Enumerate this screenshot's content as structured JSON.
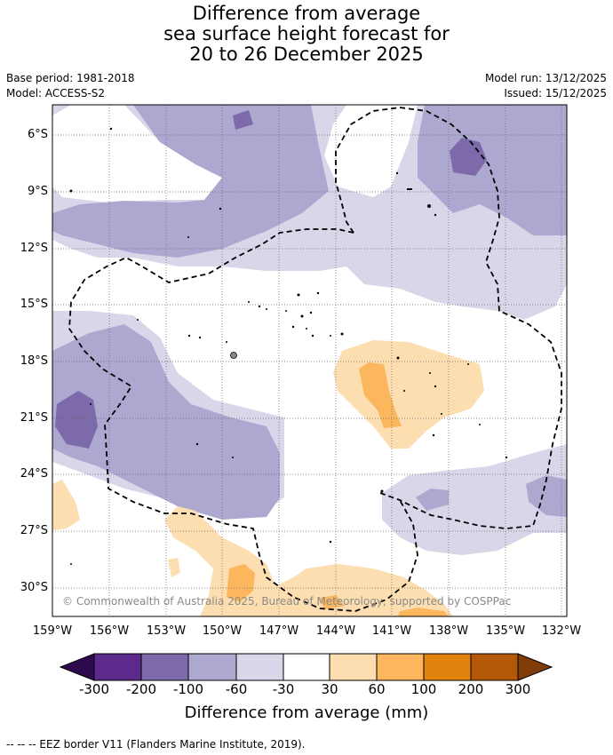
{
  "title": {
    "line1": "Difference from average",
    "line2": "sea surface height forecast for",
    "line3": "20 to 26 December 2025"
  },
  "meta": {
    "base_period": "Base period: 1981-2018",
    "model": "Model: ACCESS-S2",
    "model_run": "Model run: 13/12/2025",
    "issued": "Issued: 15/12/2025"
  },
  "axes": {
    "lat_labels": [
      "6°S",
      "9°S",
      "12°S",
      "15°S",
      "18°S",
      "21°S",
      "24°S",
      "27°S",
      "30°S"
    ],
    "lon_labels": [
      "159°W",
      "156°W",
      "153°W",
      "150°W",
      "147°W",
      "144°W",
      "141°W",
      "138°W",
      "135°W",
      "132°W"
    ]
  },
  "copyright": "© Commonwealth of Australia 2025, Bureau of Meteorology, supported by COSPPac",
  "colorbar": {
    "ticks": [
      "-300",
      "-200",
      "-100",
      "-60",
      "-30",
      "30",
      "60",
      "100",
      "200",
      "300"
    ],
    "colors": [
      "#2d0a4e",
      "#5c2a8a",
      "#7d6aaa",
      "#ada8d0",
      "#d7d7e9",
      "#ffffff",
      "#fddeb0",
      "#fbb65e",
      "#e2820f",
      "#b35806",
      "#7f3b08"
    ],
    "title": "Difference from average (mm)"
  },
  "footer": "--  --  -- EEZ border V11 (Flanders Marine Institute, 2019)."
}
